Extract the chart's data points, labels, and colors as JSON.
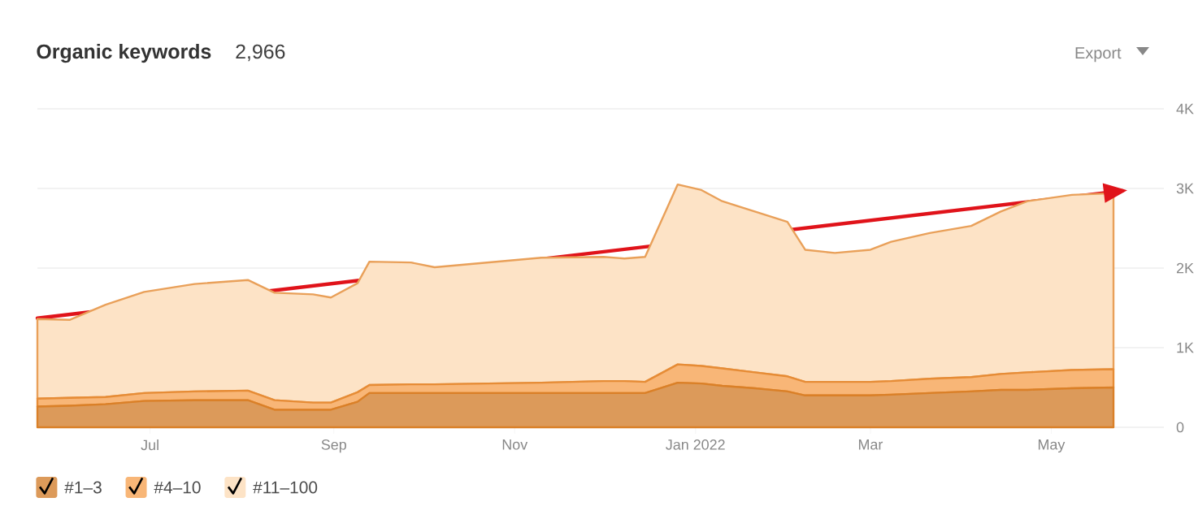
{
  "chart_data": {
    "type": "area",
    "title": "Organic keywords",
    "subtitle": "2,966",
    "annotations": [
      "Export"
    ],
    "stacked": true,
    "grid": "y",
    "legend": "bottom left",
    "x": [
      "2021-05-24",
      "2021-06-04",
      "2021-06-16",
      "2021-06-29",
      "2021-07-16",
      "2021-08-03",
      "2021-08-12",
      "2021-08-25",
      "2021-08-31",
      "2021-09-09",
      "2021-09-13",
      "2021-09-27",
      "2021-10-05",
      "2021-11-10",
      "2021-12-01",
      "2021-12-08",
      "2021-12-15",
      "2021-12-26",
      "2022-01-03",
      "2022-01-10",
      "2022-01-21",
      "2022-02-01",
      "2022-02-07",
      "2022-02-17",
      "2022-03-01",
      "2022-03-08",
      "2022-03-21",
      "2022-04-04",
      "2022-04-14",
      "2022-04-23",
      "2022-05-08",
      "2022-05-22"
    ],
    "series": [
      {
        "name": "#1–3",
        "color": "#dc9a5a",
        "values": [
          260,
          270,
          290,
          330,
          340,
          340,
          220,
          220,
          220,
          320,
          430,
          430,
          430,
          430,
          430,
          430,
          430,
          560,
          550,
          520,
          490,
          450,
          400,
          400,
          400,
          410,
          430,
          450,
          470,
          470,
          490,
          500
        ]
      },
      {
        "name": "#4–10",
        "color": "#f8b677",
        "values": [
          100,
          100,
          90,
          100,
          110,
          120,
          120,
          90,
          90,
          120,
          100,
          110,
          110,
          130,
          150,
          150,
          140,
          230,
          220,
          220,
          200,
          190,
          170,
          170,
          170,
          170,
          180,
          180,
          200,
          220,
          230,
          230
        ]
      },
      {
        "name": "#11–100",
        "color": "#fde3c6",
        "values": [
          1000,
          980,
          1160,
          1270,
          1350,
          1390,
          1350,
          1360,
          1320,
          1370,
          1550,
          1530,
          1470,
          1570,
          1560,
          1540,
          1570,
          2260,
          2210,
          2100,
          2020,
          1940,
          1660,
          1620,
          1660,
          1750,
          1830,
          1900,
          2040,
          2150,
          2200,
          2210
        ]
      },
      {
        "type": "line",
        "color": "#e0131a",
        "x": [
          "2021-05-24",
          "2022-05-25"
        ],
        "values": [
          1370,
          2970
        ]
      }
    ],
    "xlim": [
      "2021-05-24",
      "2022-06-08"
    ],
    "xticks": [
      {
        "value": "2021-07-01",
        "label": "Jul"
      },
      {
        "value": "2021-09-01",
        "label": "Sep"
      },
      {
        "value": "2021-11-01",
        "label": "Nov"
      },
      {
        "value": "2022-01-01",
        "label": "Jan 2022"
      },
      {
        "value": "2022-03-01",
        "label": "Mar"
      },
      {
        "value": "2022-05-01",
        "label": "May"
      }
    ],
    "ylim": [
      0,
      4000
    ],
    "yticks": [
      0,
      {
        "value": 1000,
        "label": "1K"
      },
      {
        "value": 2000,
        "label": "2K"
      },
      {
        "value": 3000,
        "label": "3K"
      },
      {
        "value": 4000,
        "label": "4K"
      }
    ]
  }
}
